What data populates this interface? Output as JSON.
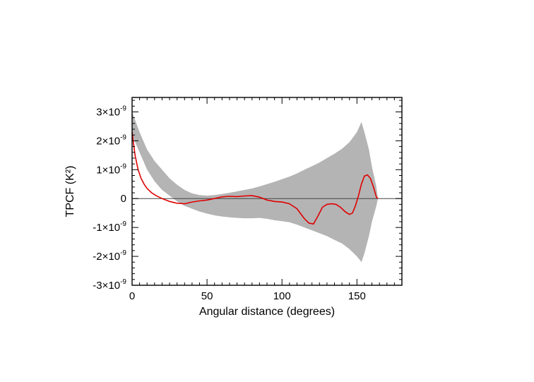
{
  "chart_data": {
    "type": "line",
    "title": "",
    "xlabel": "Angular distance (degrees)",
    "ylabel": "TPCF (K²)",
    "xlim": [
      0,
      180
    ],
    "ylim": [
      -3e-09,
      3.5e-09
    ],
    "xticks": [
      0,
      50,
      100,
      150
    ],
    "xtick_labels": [
      "0",
      "50",
      "100",
      "150"
    ],
    "yticks": [
      3e-09,
      2e-09,
      1e-09,
      0,
      -1e-09,
      -2e-09,
      -3e-09
    ],
    "ytick_labels": [
      {
        "mant": "3×10",
        "exp": "-9"
      },
      {
        "mant": "2×10",
        "exp": "-9"
      },
      {
        "mant": "1×10",
        "exp": "-9"
      },
      {
        "mant": "0",
        "exp": ""
      },
      {
        "mant": "-1×10",
        "exp": "-9"
      },
      {
        "mant": "-2×10",
        "exp": "-9"
      },
      {
        "mant": "-3×10",
        "exp": "-9"
      }
    ],
    "zero_line": true,
    "colors": {
      "band": "#b4b4b4",
      "line": "#e00000",
      "zero_line": "#444444"
    },
    "band": {
      "x": [
        0,
        5,
        10,
        15,
        20,
        25,
        30,
        35,
        40,
        45,
        50,
        55,
        60,
        65,
        70,
        75,
        80,
        85,
        90,
        95,
        100,
        105,
        110,
        115,
        120,
        125,
        130,
        135,
        140,
        145,
        150,
        153,
        155,
        158,
        160,
        163,
        164
      ],
      "upper": [
        3e-09,
        2.3e-09,
        1.7e-09,
        1.3e-09,
        1e-09,
        7e-10,
        4.8e-10,
        3e-10,
        1.8e-10,
        1.2e-10,
        1e-10,
        1.2e-10,
        1.6e-10,
        2e-10,
        2.5e-10,
        3e-10,
        3.5e-10,
        4.2e-10,
        5e-10,
        5.8e-10,
        6.7e-10,
        7.6e-10,
        8.7e-10,
        1e-09,
        1.12e-09,
        1.25e-09,
        1.4e-09,
        1.55e-09,
        1.72e-09,
        1.95e-09,
        2.3e-09,
        2.65e-09,
        2.3e-09,
        1.7e-09,
        1.1e-09,
        4e-10,
        0.0
      ],
      "lower": [
        2.2e-09,
        1.6e-09,
        1e-09,
        6e-10,
        3e-10,
        1e-10,
        -1e-10,
        -2.5e-10,
        -3.5e-10,
        -4.5e-10,
        -5.2e-10,
        -5.8e-10,
        -6.2e-10,
        -6.5e-10,
        -6.7e-10,
        -6.8e-10,
        -6.8e-10,
        -6.7e-10,
        -7e-10,
        -7.5e-10,
        -7.8e-10,
        -8.2e-10,
        -9e-10,
        -1e-09,
        -1.1e-09,
        -1.2e-09,
        -1.3e-09,
        -1.43e-09,
        -1.55e-09,
        -1.75e-09,
        -2e-09,
        -2.2e-09,
        -1.9e-09,
        -1.3e-09,
        -8e-10,
        -2.5e-10,
        0.0
      ]
    },
    "series": [
      {
        "x": [
          0,
          2,
          4,
          6,
          8,
          10,
          13,
          16,
          20,
          25,
          30,
          35,
          40,
          45,
          50,
          55,
          60,
          65,
          70,
          75,
          80,
          85,
          90,
          95,
          100,
          105,
          110,
          115,
          118,
          121,
          124,
          127,
          130,
          133,
          136,
          139,
          142,
          145,
          147,
          149,
          151,
          153,
          155,
          157,
          159,
          161,
          163,
          164
        ],
        "y": [
          2.3e-09,
          1.5e-09,
          1e-09,
          7e-10,
          5e-10,
          3.5e-10,
          2e-10,
          1e-10,
          0.0,
          -1e-10,
          -1.6e-10,
          -1.8e-10,
          -1.2e-10,
          -8e-11,
          -5e-11,
          0.0,
          6e-11,
          8e-11,
          7e-11,
          9e-11,
          1e-10,
          5e-11,
          -5e-11,
          -1e-10,
          -1.2e-10,
          -1.8e-10,
          -3.5e-10,
          -7e-10,
          -8.5e-10,
          -8.8e-10,
          -6e-10,
          -3e-10,
          -2e-10,
          -1.8e-10,
          -2e-10,
          -3e-10,
          -4.5e-10,
          -5.5e-10,
          -5e-10,
          -2.5e-10,
          1e-10,
          5e-10,
          7.8e-10,
          8.2e-10,
          7e-10,
          4e-10,
          5e-11,
          0.0
        ]
      }
    ]
  }
}
